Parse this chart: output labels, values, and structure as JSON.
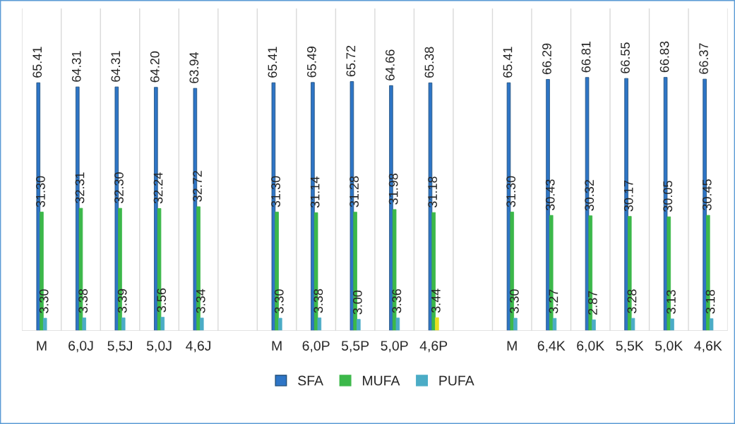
{
  "chart_data": {
    "type": "bar",
    "categories": [
      "M",
      "6,0J",
      "5,5J",
      "5,0J",
      "4,6J",
      null,
      "M",
      "6,0P",
      "5,5P",
      "5,0P",
      "4,6P",
      null,
      "M",
      "6,4K",
      "6,0K",
      "5,5K",
      "5,0K",
      "4,6K"
    ],
    "series": [
      {
        "name": "SFA",
        "color": "#2e75c6",
        "values": [
          65.41,
          64.31,
          64.31,
          64.2,
          63.94,
          null,
          65.41,
          65.49,
          65.72,
          64.66,
          65.38,
          null,
          65.41,
          66.29,
          66.81,
          66.55,
          66.83,
          66.37
        ],
        "value_labels": [
          "65.41",
          "64.31",
          "64.31",
          "64.20",
          "63.94",
          null,
          "65.41",
          "65.49",
          "65.72",
          "64.66",
          "65.38",
          null,
          "65.41",
          "66.29",
          "66.81",
          "66.55",
          "66.83",
          "66.37"
        ]
      },
      {
        "name": "MUFA",
        "color": "#3cb84a",
        "values": [
          31.3,
          32.31,
          32.3,
          32.24,
          32.72,
          null,
          31.3,
          31.14,
          31.28,
          31.98,
          31.18,
          null,
          31.3,
          30.43,
          30.32,
          30.17,
          30.05,
          30.45
        ],
        "value_labels": [
          "31.30",
          "32.31",
          "32.30",
          "32.24",
          "32.72",
          null,
          "31.30",
          "31.14",
          "31.28",
          "31.98",
          "31.18",
          null,
          "31.30",
          "30.43",
          "30.32",
          "30.17",
          "30.05",
          "30.45"
        ]
      },
      {
        "name": "PUFA",
        "color": "#4bacc6",
        "colors": [
          "#4bacc6",
          "#4bacc6",
          "#4bacc6",
          "#4bacc6",
          "#4bacc6",
          null,
          "#4bacc6",
          "#4bacc6",
          "#4bacc6",
          "#4bacc6",
          "#e8e020",
          null,
          "#4bacc6",
          "#4bacc6",
          "#4bacc6",
          "#4bacc6",
          "#4bacc6",
          "#4bacc6"
        ],
        "values": [
          3.3,
          3.38,
          3.39,
          3.56,
          3.34,
          null,
          3.3,
          3.38,
          3.0,
          3.36,
          3.44,
          null,
          3.3,
          3.27,
          2.87,
          3.28,
          3.13,
          3.18
        ],
        "value_labels": [
          "3.30",
          "3.38",
          "3.39",
          "3.56",
          "3.34",
          null,
          "3.30",
          "3.38",
          "3.00",
          "3.36",
          "3.44",
          null,
          "3.30",
          "3.27",
          "2.87",
          "3.28",
          "3.13",
          "3.18"
        ]
      }
    ],
    "ylim": [
      0,
      85
    ],
    "grid": "x",
    "legend": "bottom"
  }
}
